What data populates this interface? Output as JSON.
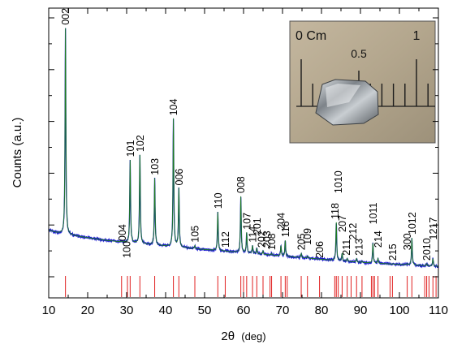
{
  "chart_data": {
    "type": "line",
    "title": "",
    "xlabel": "2θ (deg)",
    "xlabel_parts": {
      "sym": "2θ",
      "unit": "(deg)"
    },
    "ylabel": "Counts (a.u.)",
    "xlim": [
      10,
      110
    ],
    "ylim": [
      0,
      100
    ],
    "x_ticks": [
      10,
      20,
      30,
      40,
      50,
      60,
      70,
      80,
      90,
      100,
      110
    ],
    "x_tick_labels": [
      "10",
      "20",
      "30",
      "40",
      "50",
      "60",
      "70",
      "80",
      "90",
      "100",
      "110"
    ],
    "grid": false,
    "colors": {
      "observed": "#1c1cd0",
      "fit": "#1d7d1d",
      "reference": "#e02020"
    },
    "observed_peaks": [
      {
        "x": 14.3,
        "y": 96
      },
      {
        "x": 28.9,
        "y": 12.5
      },
      {
        "x": 30.2,
        "y": 12
      },
      {
        "x": 30.9,
        "y": 45
      },
      {
        "x": 33.4,
        "y": 47
      },
      {
        "x": 37.2,
        "y": 38
      },
      {
        "x": 42.0,
        "y": 61
      },
      {
        "x": 43.4,
        "y": 34
      },
      {
        "x": 47.5,
        "y": 12
      },
      {
        "x": 53.4,
        "y": 25
      },
      {
        "x": 55.3,
        "y": 10
      },
      {
        "x": 59.3,
        "y": 31
      },
      {
        "x": 60.8,
        "y": 17
      },
      {
        "x": 62.3,
        "y": 12
      },
      {
        "x": 63.4,
        "y": 11
      },
      {
        "x": 65.0,
        "y": 10
      },
      {
        "x": 67.2,
        "y": 9
      },
      {
        "x": 69.6,
        "y": 12
      },
      {
        "x": 70.7,
        "y": 14
      },
      {
        "x": 74.8,
        "y": 9
      },
      {
        "x": 76.4,
        "y": 8
      },
      {
        "x": 79.5,
        "y": 6
      },
      {
        "x": 83.8,
        "y": 21
      },
      {
        "x": 85.3,
        "y": 9
      },
      {
        "x": 86.6,
        "y": 7
      },
      {
        "x": 89.0,
        "y": 7
      },
      {
        "x": 90.4,
        "y": 6
      },
      {
        "x": 93.2,
        "y": 13
      },
      {
        "x": 94.5,
        "y": 7
      },
      {
        "x": 98.2,
        "y": 5
      },
      {
        "x": 102.0,
        "y": 5
      },
      {
        "x": 103.2,
        "y": 15
      },
      {
        "x": 107.0,
        "y": 5
      },
      {
        "x": 108.6,
        "y": 7
      }
    ],
    "background": [
      {
        "x": 10,
        "y": 18
      },
      {
        "x": 12,
        "y": 17
      },
      {
        "x": 18,
        "y": 15.5
      },
      {
        "x": 25,
        "y": 14
      },
      {
        "x": 35,
        "y": 12.5
      },
      {
        "x": 50,
        "y": 10.5
      },
      {
        "x": 70,
        "y": 8
      },
      {
        "x": 90,
        "y": 5.5
      },
      {
        "x": 110,
        "y": 4
      }
    ],
    "reference_peaks_x": [
      14.3,
      28.7,
      30.2,
      30.9,
      33.4,
      37.2,
      42.0,
      43.4,
      47.5,
      53.4,
      55.3,
      59.3,
      60.0,
      60.8,
      62.3,
      63.4,
      65.0,
      66.8,
      67.2,
      69.6,
      70.7,
      71.2,
      74.8,
      76.4,
      79.5,
      83.4,
      83.8,
      84.3,
      85.3,
      86.6,
      87.6,
      89.0,
      90.4,
      92.8,
      93.2,
      93.6,
      94.5,
      97.6,
      98.2,
      102.0,
      103.2,
      106.5,
      107.0,
      107.6,
      108.6,
      109.4
    ],
    "peak_labels": [
      {
        "text": "002",
        "x": 14.3,
        "y": 96
      },
      {
        "text": "004",
        "x": 28.9,
        "y": 12.5
      },
      {
        "text": "100",
        "x": 30.0,
        "y": 6
      },
      {
        "text": "101",
        "x": 30.9,
        "y": 45
      },
      {
        "text": "102",
        "x": 33.4,
        "y": 47
      },
      {
        "text": "103",
        "x": 37.2,
        "y": 38
      },
      {
        "text": "104",
        "x": 42.0,
        "y": 61
      },
      {
        "text": "006",
        "x": 43.4,
        "y": 34
      },
      {
        "text": "105",
        "x": 47.5,
        "y": 12
      },
      {
        "text": "110",
        "x": 53.4,
        "y": 25
      },
      {
        "text": "112",
        "x": 55.3,
        "y": 10
      },
      {
        "text": "008",
        "x": 59.3,
        "y": 31
      },
      {
        "text": "107",
        "x": 60.8,
        "y": 17
      },
      {
        "text": "114",
        "x": 62.3,
        "y": 12
      },
      {
        "text": "201",
        "x": 63.4,
        "y": 15
      },
      {
        "text": "202",
        "x": 64.6,
        "y": 10
      },
      {
        "text": "203",
        "x": 65.9,
        "y": 10
      },
      {
        "text": "108",
        "x": 67.2,
        "y": 9
      },
      {
        "text": "204",
        "x": 69.6,
        "y": 17
      },
      {
        "text": "116",
        "x": 70.7,
        "y": 14
      },
      {
        "text": "205",
        "x": 74.8,
        "y": 9
      },
      {
        "text": "109",
        "x": 76.4,
        "y": 11
      },
      {
        "text": "206",
        "x": 79.5,
        "y": 6
      },
      {
        "text": "118",
        "x": 83.4,
        "y": 21
      },
      {
        "text": "1010",
        "x": 84.3,
        "y": 31
      },
      {
        "text": "207",
        "x": 85.3,
        "y": 16
      },
      {
        "text": "211",
        "x": 86.4,
        "y": 7
      },
      {
        "text": "212",
        "x": 88.0,
        "y": 13
      },
      {
        "text": "213",
        "x": 89.6,
        "y": 7
      },
      {
        "text": "1011",
        "x": 93.2,
        "y": 19
      },
      {
        "text": "214",
        "x": 94.5,
        "y": 10
      },
      {
        "text": "215",
        "x": 98.2,
        "y": 5
      },
      {
        "text": "300",
        "x": 102.0,
        "y": 9
      },
      {
        "text": "1012",
        "x": 103.2,
        "y": 15
      },
      {
        "text": "2010",
        "x": 107.0,
        "y": 5
      },
      {
        "text": "1217",
        "x": 108.6,
        "y": 13
      }
    ],
    "inset": {
      "scale_labels": [
        {
          "text": "0 Cm",
          "mm": 0
        },
        {
          "text": "0.5",
          "mm": 5
        },
        {
          "text": "1",
          "mm": 10
        }
      ]
    }
  }
}
